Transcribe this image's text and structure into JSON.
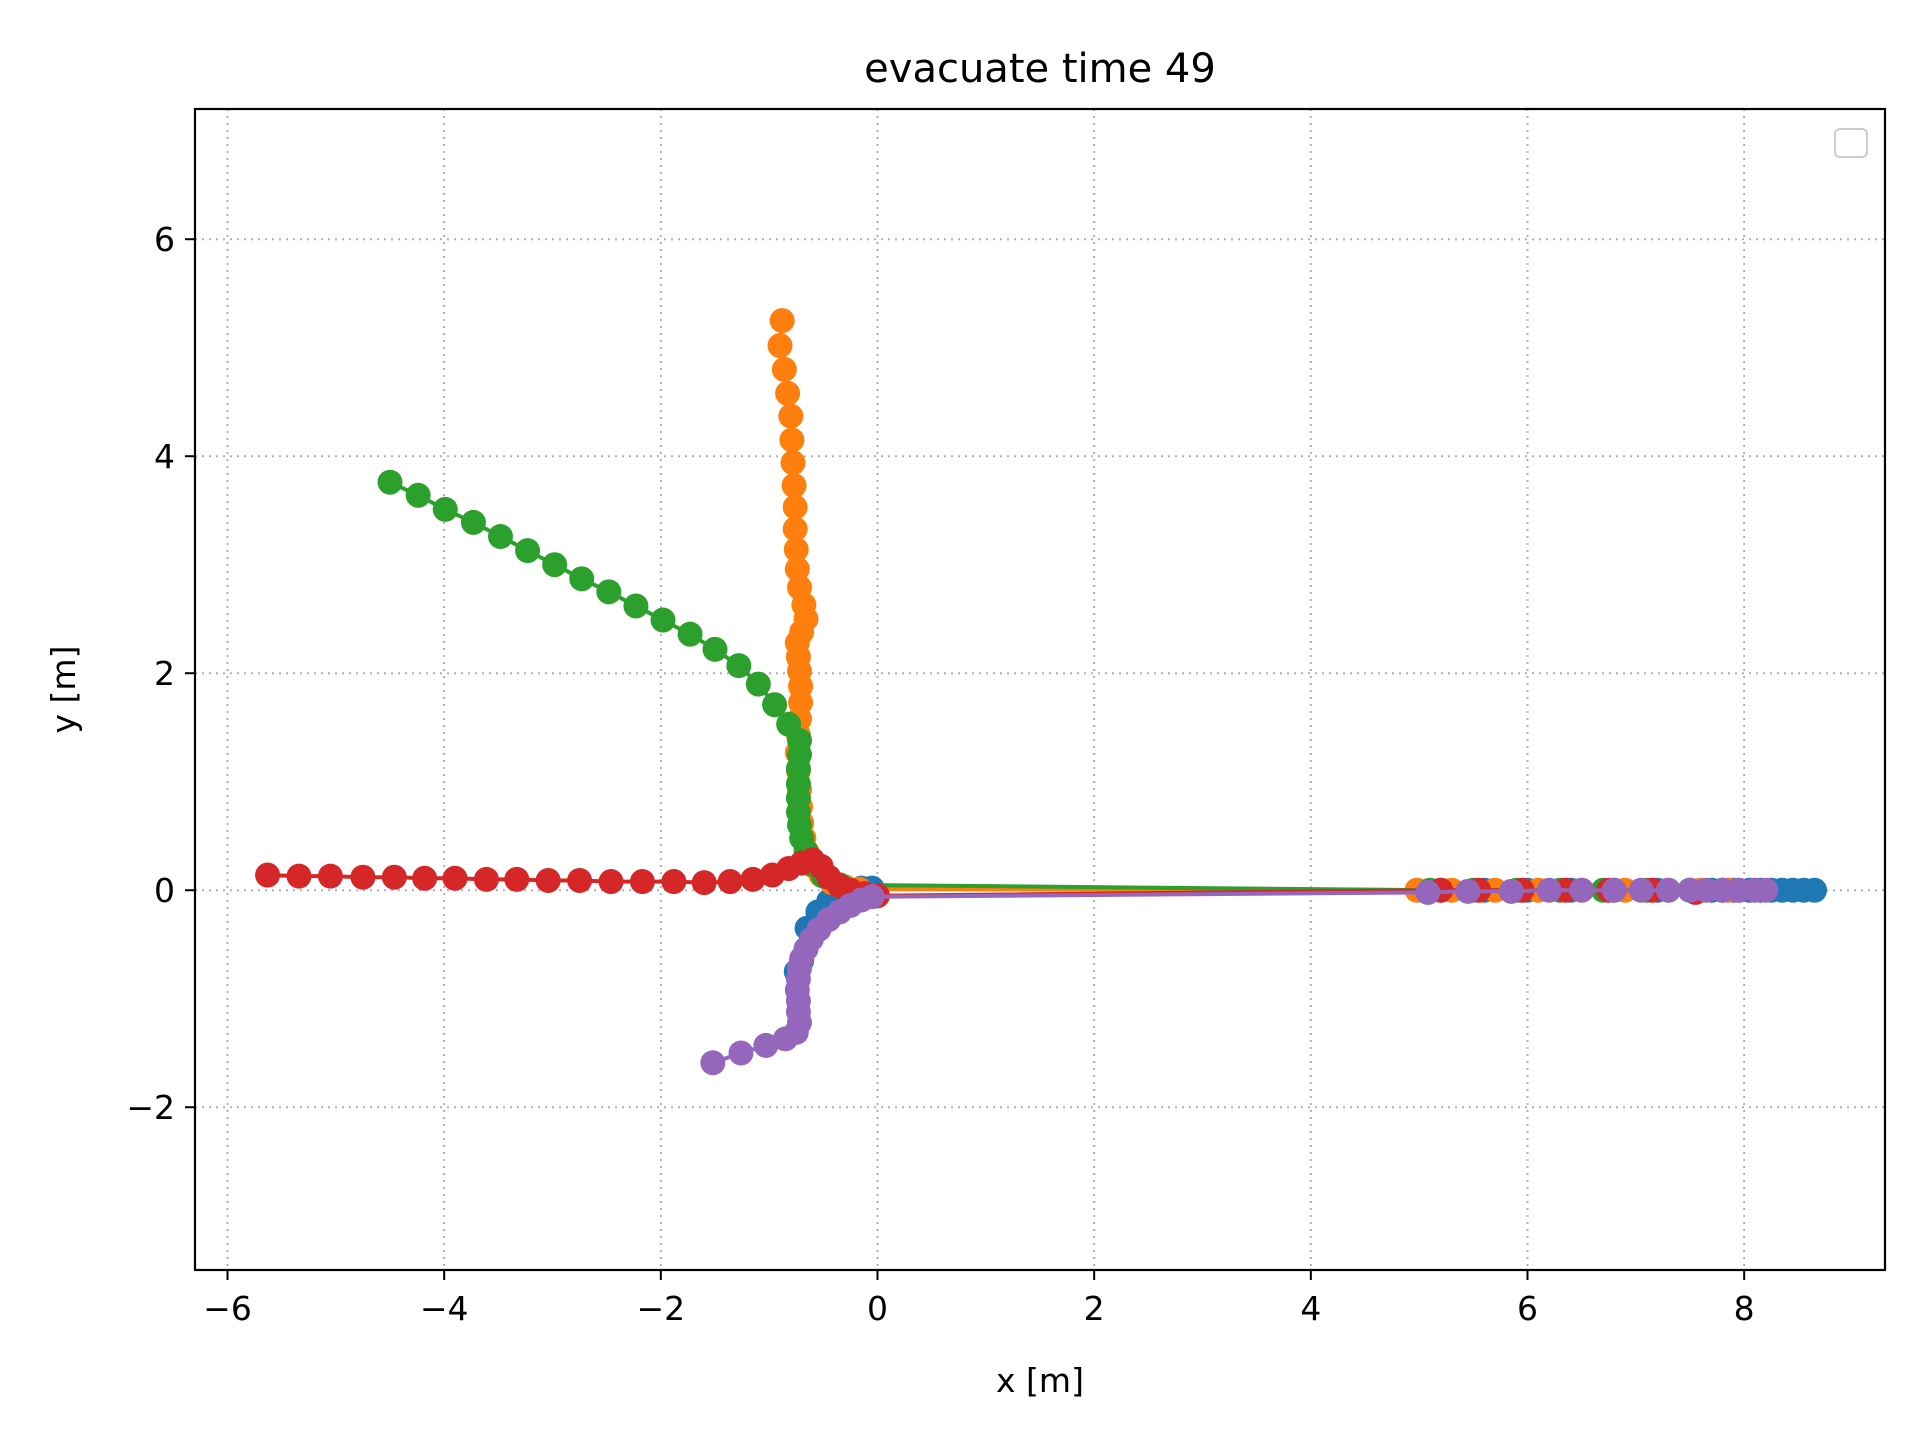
{
  "chart_data": {
    "type": "scatter",
    "title": "evacuate time 49",
    "xlabel": "x [m]",
    "ylabel": "y [m]",
    "xlim": [
      -6.3,
      9.3
    ],
    "ylim": [
      -3.5,
      7.2
    ],
    "xticks": [
      -6,
      -4,
      -2,
      0,
      2,
      4,
      6,
      8
    ],
    "yticks": [
      -2,
      0,
      2,
      4,
      6
    ],
    "xtick_labels": [
      "−6",
      "−4",
      "−2",
      "0",
      "2",
      "4",
      "6",
      "8"
    ],
    "ytick_labels": [
      "−2",
      "0",
      "2",
      "4",
      "6"
    ],
    "grid": true,
    "grid_style": "dotted",
    "legend": "top-right",
    "series": [
      {
        "color": "#1f77b4",
        "points": [
          [
            -0.75,
            -0.75
          ],
          [
            -0.7,
            -0.65
          ],
          [
            -0.65,
            -0.35
          ],
          [
            -0.55,
            -0.2
          ],
          [
            -0.45,
            -0.1
          ],
          [
            -0.3,
            0.0
          ],
          [
            -0.15,
            0.02
          ],
          [
            -0.05,
            0.02
          ],
          [
            5.2,
            0.0
          ],
          [
            5.6,
            0.0
          ],
          [
            6.0,
            0.0
          ],
          [
            6.4,
            0.0
          ],
          [
            6.8,
            0.0
          ],
          [
            7.2,
            0.0
          ],
          [
            7.5,
            0.0
          ],
          [
            7.7,
            0.0
          ],
          [
            7.9,
            0.0
          ],
          [
            8.05,
            0.0
          ],
          [
            8.15,
            0.0
          ],
          [
            8.25,
            0.0
          ],
          [
            8.35,
            0.0
          ],
          [
            8.45,
            0.0
          ],
          [
            8.55,
            0.0
          ],
          [
            8.65,
            0.0
          ]
        ]
      },
      {
        "color": "#ff7f0e",
        "points": [
          [
            -0.88,
            5.25
          ],
          [
            -0.9,
            5.02
          ],
          [
            -0.86,
            4.8
          ],
          [
            -0.83,
            4.58
          ],
          [
            -0.8,
            4.37
          ],
          [
            -0.79,
            4.15
          ],
          [
            -0.78,
            3.94
          ],
          [
            -0.77,
            3.73
          ],
          [
            -0.76,
            3.53
          ],
          [
            -0.76,
            3.33
          ],
          [
            -0.75,
            3.14
          ],
          [
            -0.74,
            2.96
          ],
          [
            -0.72,
            2.79
          ],
          [
            -0.68,
            2.63
          ],
          [
            -0.66,
            2.5
          ],
          [
            -0.7,
            2.38
          ],
          [
            -0.74,
            2.28
          ],
          [
            -0.73,
            2.15
          ],
          [
            -0.72,
            2.02
          ],
          [
            -0.71,
            1.88
          ],
          [
            -0.71,
            1.73
          ],
          [
            -0.72,
            1.58
          ],
          [
            -0.73,
            1.43
          ],
          [
            -0.74,
            1.27
          ],
          [
            -0.73,
            1.1
          ],
          [
            -0.72,
            0.93
          ],
          [
            -0.71,
            0.77
          ],
          [
            -0.7,
            0.62
          ],
          [
            -0.68,
            0.48
          ],
          [
            -0.65,
            0.35
          ],
          [
            -0.6,
            0.23
          ],
          [
            -0.52,
            0.14
          ],
          [
            -0.42,
            0.07
          ],
          [
            -0.3,
            0.03
          ],
          [
            -0.17,
            0.01
          ],
          [
            4.98,
            0.0
          ],
          [
            5.3,
            0.0
          ],
          [
            5.7,
            0.0
          ],
          [
            6.1,
            0.0
          ],
          [
            6.5,
            0.0
          ],
          [
            6.9,
            0.0
          ],
          [
            7.3,
            0.0
          ],
          [
            7.6,
            0.0
          ],
          [
            7.85,
            0.0
          ]
        ]
      },
      {
        "color": "#2ca02c",
        "points": [
          [
            -4.5,
            3.76
          ],
          [
            -4.24,
            3.64
          ],
          [
            -3.99,
            3.51
          ],
          [
            -3.73,
            3.39
          ],
          [
            -3.48,
            3.26
          ],
          [
            -3.23,
            3.13
          ],
          [
            -2.98,
            3.0
          ],
          [
            -2.73,
            2.87
          ],
          [
            -2.48,
            2.75
          ],
          [
            -2.23,
            2.62
          ],
          [
            -1.98,
            2.49
          ],
          [
            -1.73,
            2.36
          ],
          [
            -1.5,
            2.22
          ],
          [
            -1.28,
            2.07
          ],
          [
            -1.1,
            1.9
          ],
          [
            -0.95,
            1.71
          ],
          [
            -0.82,
            1.53
          ],
          [
            -0.72,
            1.38
          ],
          [
            -0.72,
            1.25
          ],
          [
            -0.73,
            1.12
          ],
          [
            -0.73,
            0.98
          ],
          [
            -0.73,
            0.85
          ],
          [
            -0.73,
            0.72
          ],
          [
            -0.72,
            0.6
          ],
          [
            -0.7,
            0.48
          ],
          [
            -0.66,
            0.36
          ],
          [
            -0.6,
            0.24
          ],
          [
            -0.5,
            0.13
          ],
          [
            -0.35,
            0.05
          ],
          [
            5.1,
            0.0
          ],
          [
            5.5,
            0.0
          ],
          [
            5.9,
            0.0
          ],
          [
            6.3,
            0.0
          ],
          [
            6.7,
            0.0
          ],
          [
            7.1,
            0.0
          ],
          [
            7.5,
            0.0
          ],
          [
            7.8,
            0.0
          ]
        ]
      },
      {
        "color": "#d62728",
        "points": [
          [
            -5.63,
            0.14
          ],
          [
            -5.34,
            0.13
          ],
          [
            -5.05,
            0.13
          ],
          [
            -4.75,
            0.12
          ],
          [
            -4.46,
            0.12
          ],
          [
            -4.18,
            0.11
          ],
          [
            -3.9,
            0.11
          ],
          [
            -3.61,
            0.1
          ],
          [
            -3.33,
            0.1
          ],
          [
            -3.04,
            0.09
          ],
          [
            -2.75,
            0.09
          ],
          [
            -2.46,
            0.08
          ],
          [
            -2.17,
            0.08
          ],
          [
            -1.88,
            0.08
          ],
          [
            -1.6,
            0.07
          ],
          [
            -1.36,
            0.08
          ],
          [
            -1.15,
            0.1
          ],
          [
            -0.97,
            0.14
          ],
          [
            -0.82,
            0.2
          ],
          [
            -0.7,
            0.25
          ],
          [
            -0.6,
            0.28
          ],
          [
            -0.52,
            0.22
          ],
          [
            -0.45,
            0.12
          ],
          [
            -0.35,
            0.04
          ],
          [
            -0.25,
            0.0
          ],
          [
            -0.12,
            -0.03
          ],
          [
            0.0,
            -0.05
          ],
          [
            5.2,
            0.0
          ],
          [
            5.55,
            0.0
          ],
          [
            5.95,
            0.0
          ],
          [
            6.35,
            0.0
          ],
          [
            6.75,
            0.0
          ],
          [
            7.15,
            0.0
          ],
          [
            7.55,
            -0.02
          ],
          [
            7.8,
            0.0
          ],
          [
            7.95,
            0.0
          ]
        ]
      },
      {
        "color": "#9467bd",
        "points": [
          [
            -1.52,
            -1.59
          ],
          [
            -1.26,
            -1.5
          ],
          [
            -1.03,
            -1.43
          ],
          [
            -0.85,
            -1.37
          ],
          [
            -0.75,
            -1.31
          ],
          [
            -0.72,
            -1.22
          ],
          [
            -0.73,
            -1.12
          ],
          [
            -0.73,
            -1.02
          ],
          [
            -0.74,
            -0.92
          ],
          [
            -0.73,
            -0.82
          ],
          [
            -0.72,
            -0.72
          ],
          [
            -0.7,
            -0.63
          ],
          [
            -0.66,
            -0.54
          ],
          [
            -0.61,
            -0.45
          ],
          [
            -0.54,
            -0.36
          ],
          [
            -0.45,
            -0.27
          ],
          [
            -0.35,
            -0.2
          ],
          [
            -0.25,
            -0.14
          ],
          [
            -0.15,
            -0.09
          ],
          [
            -0.05,
            -0.06
          ],
          [
            5.08,
            -0.02
          ],
          [
            5.45,
            -0.01
          ],
          [
            5.85,
            -0.01
          ],
          [
            6.2,
            0.0
          ],
          [
            6.5,
            0.0
          ],
          [
            6.8,
            0.0
          ],
          [
            7.05,
            0.0
          ],
          [
            7.3,
            0.0
          ],
          [
            7.5,
            0.0
          ],
          [
            7.65,
            0.0
          ],
          [
            7.8,
            0.0
          ],
          [
            7.95,
            0.0
          ],
          [
            8.1,
            0.0
          ],
          [
            8.2,
            0.0
          ]
        ]
      }
    ]
  }
}
